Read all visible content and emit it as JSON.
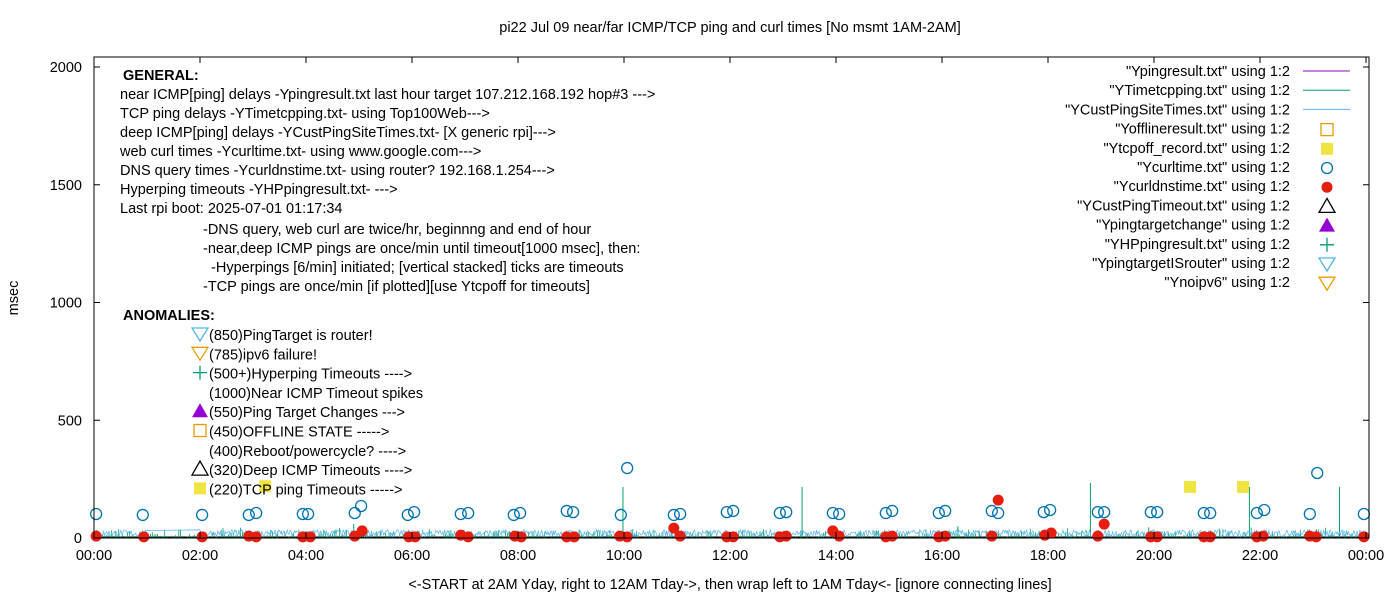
{
  "chart_data": {
    "type": "scatter",
    "title": "pi22 Jul 09  near/far ICMP/TCP ping and curl times [No msmt 1AM-2AM]",
    "xlabel": "<-START at 2AM Yday, right to 12AM Tday->, then wrap left to 1AM Tday<- [ignore connecting lines]",
    "ylabel": "msec",
    "xlim": [
      0,
      24
    ],
    "ylim": [
      0,
      2000
    ],
    "xticks": [
      "00:00",
      "02:00",
      "04:00",
      "06:00",
      "08:00",
      "10:00",
      "12:00",
      "14:00",
      "16:00",
      "18:00",
      "20:00",
      "22:00",
      "00:00"
    ],
    "yticks": [
      "0",
      "500",
      "1000",
      "1500",
      "2000"
    ],
    "grid": false,
    "legend_placement": "top-right",
    "colors": {
      "ping": "#9400d3",
      "tcp": "#009e73",
      "cust": "#56b4e9",
      "offline": "#e69f00",
      "tcpoff": "#f0e442",
      "curl": "#0072b2",
      "dns": "#e51e10",
      "custtimeout": "#000000",
      "targetchange": "#9400d3",
      "hp": "#009e73",
      "isrouter": "#56b4e9",
      "noipv6": "#e69f00"
    },
    "series": [
      {
        "name": "\"Ypingresult.txt\" using 1:2",
        "style": "line",
        "color_key": "ping",
        "baseline_msec": 3
      },
      {
        "name": "\"YTimetcpping.txt\" using 1:2",
        "style": "line",
        "color_key": "tcp",
        "spikes": [
          [
            9.98,
            217
          ],
          [
            13.36,
            217
          ],
          [
            18.8,
            234
          ],
          [
            21.8,
            217
          ],
          [
            23.5,
            217
          ],
          [
            4.9,
            60
          ],
          [
            11.0,
            50
          ],
          [
            16.3,
            50
          ],
          [
            19.9,
            45
          ]
        ]
      },
      {
        "name": "\"YCustPingSiteTimes.txt\" using 1:2",
        "style": "line",
        "color_key": "cust",
        "baseline_msec": 20
      },
      {
        "name": "\"Yofflineresult.txt\" using 1:2",
        "style": "open-square",
        "color_key": "offline",
        "points": []
      },
      {
        "name": "\"Ytcpoff_record.txt\" using 1:2",
        "style": "filled-square",
        "color_key": "tcpoff",
        "points": [
          [
            3.23,
            220
          ],
          [
            20.68,
            217
          ],
          [
            21.68,
            217
          ]
        ]
      },
      {
        "name": "\"Ycurltime.txt\" using 1:2",
        "style": "open-circle",
        "color_key": "curl",
        "points": [
          [
            0.04,
            102
          ],
          [
            0.92,
            98
          ],
          [
            2.04,
            98
          ],
          [
            2.92,
            98
          ],
          [
            3.06,
            106
          ],
          [
            3.94,
            102
          ],
          [
            4.04,
            102
          ],
          [
            4.92,
            106
          ],
          [
            5.04,
            136
          ],
          [
            5.92,
            98
          ],
          [
            6.04,
            110
          ],
          [
            6.92,
            102
          ],
          [
            7.06,
            106
          ],
          [
            7.92,
            98
          ],
          [
            8.04,
            106
          ],
          [
            8.92,
            115
          ],
          [
            9.04,
            110
          ],
          [
            9.94,
            98
          ],
          [
            10.06,
            297
          ],
          [
            10.94,
            98
          ],
          [
            11.06,
            102
          ],
          [
            11.94,
            110
          ],
          [
            12.06,
            115
          ],
          [
            12.94,
            106
          ],
          [
            13.06,
            110
          ],
          [
            13.94,
            106
          ],
          [
            14.06,
            102
          ],
          [
            14.94,
            106
          ],
          [
            15.06,
            115
          ],
          [
            15.94,
            106
          ],
          [
            16.06,
            115
          ],
          [
            16.94,
            115
          ],
          [
            17.06,
            106
          ],
          [
            17.92,
            110
          ],
          [
            18.04,
            119
          ],
          [
            18.94,
            110
          ],
          [
            19.06,
            110
          ],
          [
            19.94,
            110
          ],
          [
            20.06,
            110
          ],
          [
            20.94,
            106
          ],
          [
            21.06,
            106
          ],
          [
            21.94,
            106
          ],
          [
            22.08,
            119
          ],
          [
            22.94,
            102
          ],
          [
            23.08,
            276
          ],
          [
            23.96,
            102
          ]
        ]
      },
      {
        "name": "\"Ycurldnstime.txt\" using 1:2",
        "style": "filled-circle",
        "color_key": "dns",
        "points": [
          [
            0.04,
            8
          ],
          [
            0.94,
            5
          ],
          [
            2.04,
            5
          ],
          [
            2.92,
            8
          ],
          [
            3.06,
            5
          ],
          [
            3.94,
            5
          ],
          [
            4.08,
            5
          ],
          [
            4.92,
            8
          ],
          [
            5.06,
            30
          ],
          [
            5.94,
            5
          ],
          [
            6.06,
            5
          ],
          [
            6.92,
            12
          ],
          [
            7.06,
            5
          ],
          [
            7.94,
            8
          ],
          [
            8.06,
            5
          ],
          [
            8.92,
            5
          ],
          [
            9.06,
            5
          ],
          [
            9.92,
            8
          ],
          [
            10.06,
            5
          ],
          [
            10.94,
            42
          ],
          [
            11.06,
            8
          ],
          [
            11.94,
            5
          ],
          [
            12.06,
            5
          ],
          [
            12.94,
            5
          ],
          [
            13.06,
            8
          ],
          [
            13.94,
            30
          ],
          [
            14.06,
            8
          ],
          [
            14.94,
            5
          ],
          [
            15.06,
            8
          ],
          [
            15.94,
            5
          ],
          [
            16.06,
            8
          ],
          [
            16.94,
            8
          ],
          [
            17.06,
            161
          ],
          [
            17.94,
            12
          ],
          [
            18.06,
            21
          ],
          [
            18.94,
            8
          ],
          [
            19.06,
            59
          ],
          [
            19.94,
            5
          ],
          [
            20.06,
            5
          ],
          [
            20.94,
            5
          ],
          [
            21.06,
            5
          ],
          [
            21.94,
            5
          ],
          [
            22.06,
            8
          ],
          [
            22.94,
            8
          ],
          [
            23.06,
            5
          ],
          [
            23.96,
            5
          ]
        ]
      },
      {
        "name": "\"YCustPingTimeout.txt\" using 1:2",
        "style": "open-triangle",
        "color_key": "custtimeout",
        "points": []
      },
      {
        "name": "\"Ypingtargetchange\" using 1:2",
        "style": "filled-triangle",
        "color_key": "targetchange",
        "points": []
      },
      {
        "name": "\"YHPpingresult.txt\" using 1:2",
        "style": "plus",
        "color_key": "hp",
        "points": []
      },
      {
        "name": "\"YpingtargetISrouter\" using 1:2",
        "style": "open-down-triangle",
        "color_key": "isrouter",
        "points": []
      },
      {
        "name": "\"Ynoipv6\" using 1:2",
        "style": "open-down-triangle",
        "color_key": "noipv6",
        "points": []
      }
    ],
    "annotations": {
      "general_heading": "GENERAL:",
      "general": [
        "near ICMP[ping] delays -Ypingresult.txt last hour target 107.212.168.192 hop#3 --->",
        "TCP ping delays -YTimetcpping.txt- using Top100Web--->",
        "deep ICMP[ping] delays -YCustPingSiteTimes.txt- [X generic rpi]--->",
        "web curl times -Ycurltime.txt- using www.google.com--->",
        "DNS query times -Ycurldnstime.txt- using router? 192.168.1.254--->",
        "Hyperping timeouts -YHPpingresult.txt- --->",
        "Last rpi boot: 2025-07-01 01:17:34"
      ],
      "notes": [
        "-DNS query, web curl are twice/hr, beginnng and end of hour",
        "-near,deep ICMP pings are once/min until timeout[1000 msec], then:",
        "  -Hyperpings [6/min] initiated; [vertical stacked] ticks are timeouts",
        "-TCP pings are once/min [if plotted][use Ytcpoff for timeouts]"
      ],
      "anomalies_heading": "ANOMALIES:",
      "anomalies": [
        {
          "text": "(850)PingTarget is router!",
          "symbol": "open-down-triangle",
          "color_key": "isrouter"
        },
        {
          "text": "(785)ipv6 failure!",
          "symbol": "open-down-triangle",
          "color_key": "noipv6"
        },
        {
          "text": "(500+)Hyperping Timeouts ---->",
          "symbol": "plus",
          "color_key": "hp"
        },
        {
          "text": "(1000)Near ICMP Timeout spikes",
          "symbol": "",
          "color_key": ""
        },
        {
          "text": "(550)Ping Target Changes --->",
          "symbol": "filled-triangle",
          "color_key": "targetchange"
        },
        {
          "text": "(450)OFFLINE STATE ----->",
          "symbol": "open-square",
          "color_key": "offline"
        },
        {
          "text": "(400)Reboot/powercycle? ---->",
          "symbol": "",
          "color_key": ""
        },
        {
          "text": "(320)Deep ICMP Timeouts ---->",
          "symbol": "open-triangle",
          "color_key": "custtimeout"
        },
        {
          "text": "(220)TCP ping Timeouts ----->",
          "symbol": "filled-square",
          "color_key": "tcpoff"
        }
      ]
    }
  }
}
